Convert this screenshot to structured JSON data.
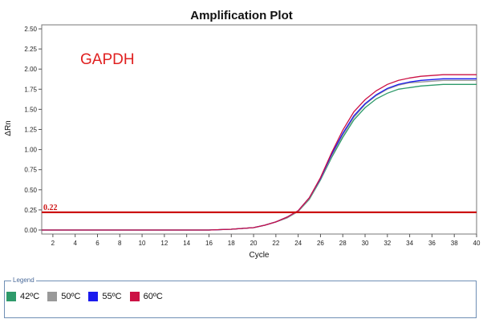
{
  "chart_data": {
    "type": "line",
    "title": "Amplification Plot",
    "xlabel": "Cycle",
    "ylabel": "ΔRn",
    "annotation": "GAPDH",
    "xlim": [
      1,
      40
    ],
    "ylim": [
      -0.05,
      2.55
    ],
    "x_ticks": [
      2,
      4,
      6,
      8,
      10,
      12,
      14,
      16,
      18,
      20,
      22,
      24,
      26,
      28,
      30,
      32,
      34,
      36,
      38,
      40
    ],
    "y_ticks": [
      "0.00",
      "0.25",
      "0.50",
      "0.75",
      "1.00",
      "1.25",
      "1.50",
      "1.75",
      "2.00",
      "2.25",
      "2.50"
    ],
    "threshold": {
      "value": 0.22,
      "label": "0.22",
      "color": "#cc1111"
    },
    "x": [
      1,
      4,
      8,
      12,
      16,
      18,
      19,
      20,
      21,
      22,
      23,
      24,
      25,
      26,
      27,
      28,
      29,
      30,
      31,
      32,
      33,
      34,
      35,
      36,
      37,
      38,
      39,
      40
    ],
    "series": [
      {
        "name": "42ºC",
        "color": "#2e9a6a",
        "values": [
          0,
          0,
          0,
          0,
          0,
          0.01,
          0.02,
          0.03,
          0.06,
          0.1,
          0.15,
          0.23,
          0.38,
          0.62,
          0.9,
          1.15,
          1.37,
          1.52,
          1.63,
          1.7,
          1.75,
          1.77,
          1.79,
          1.8,
          1.81,
          1.81,
          1.81,
          1.81
        ]
      },
      {
        "name": "50ºC",
        "color": "#999999",
        "values": [
          0,
          0,
          0,
          0,
          0,
          0.01,
          0.02,
          0.03,
          0.06,
          0.1,
          0.15,
          0.23,
          0.39,
          0.63,
          0.92,
          1.18,
          1.4,
          1.56,
          1.67,
          1.75,
          1.8,
          1.83,
          1.84,
          1.85,
          1.86,
          1.86,
          1.86,
          1.86
        ]
      },
      {
        "name": "55ºC",
        "color": "#1a1aee",
        "values": [
          0,
          0,
          0,
          0,
          0,
          0.01,
          0.02,
          0.03,
          0.06,
          0.1,
          0.16,
          0.24,
          0.4,
          0.64,
          0.94,
          1.2,
          1.42,
          1.57,
          1.68,
          1.76,
          1.81,
          1.84,
          1.86,
          1.87,
          1.88,
          1.88,
          1.88,
          1.88
        ]
      },
      {
        "name": "60ºC",
        "color": "#cc1144",
        "values": [
          0,
          0,
          0,
          0,
          0,
          0.01,
          0.02,
          0.03,
          0.06,
          0.1,
          0.16,
          0.24,
          0.4,
          0.65,
          0.96,
          1.24,
          1.47,
          1.62,
          1.73,
          1.81,
          1.86,
          1.89,
          1.91,
          1.92,
          1.93,
          1.93,
          1.93,
          1.93
        ]
      }
    ],
    "legend": {
      "caption": "Legend",
      "placement": "bottom"
    },
    "grid": false
  }
}
